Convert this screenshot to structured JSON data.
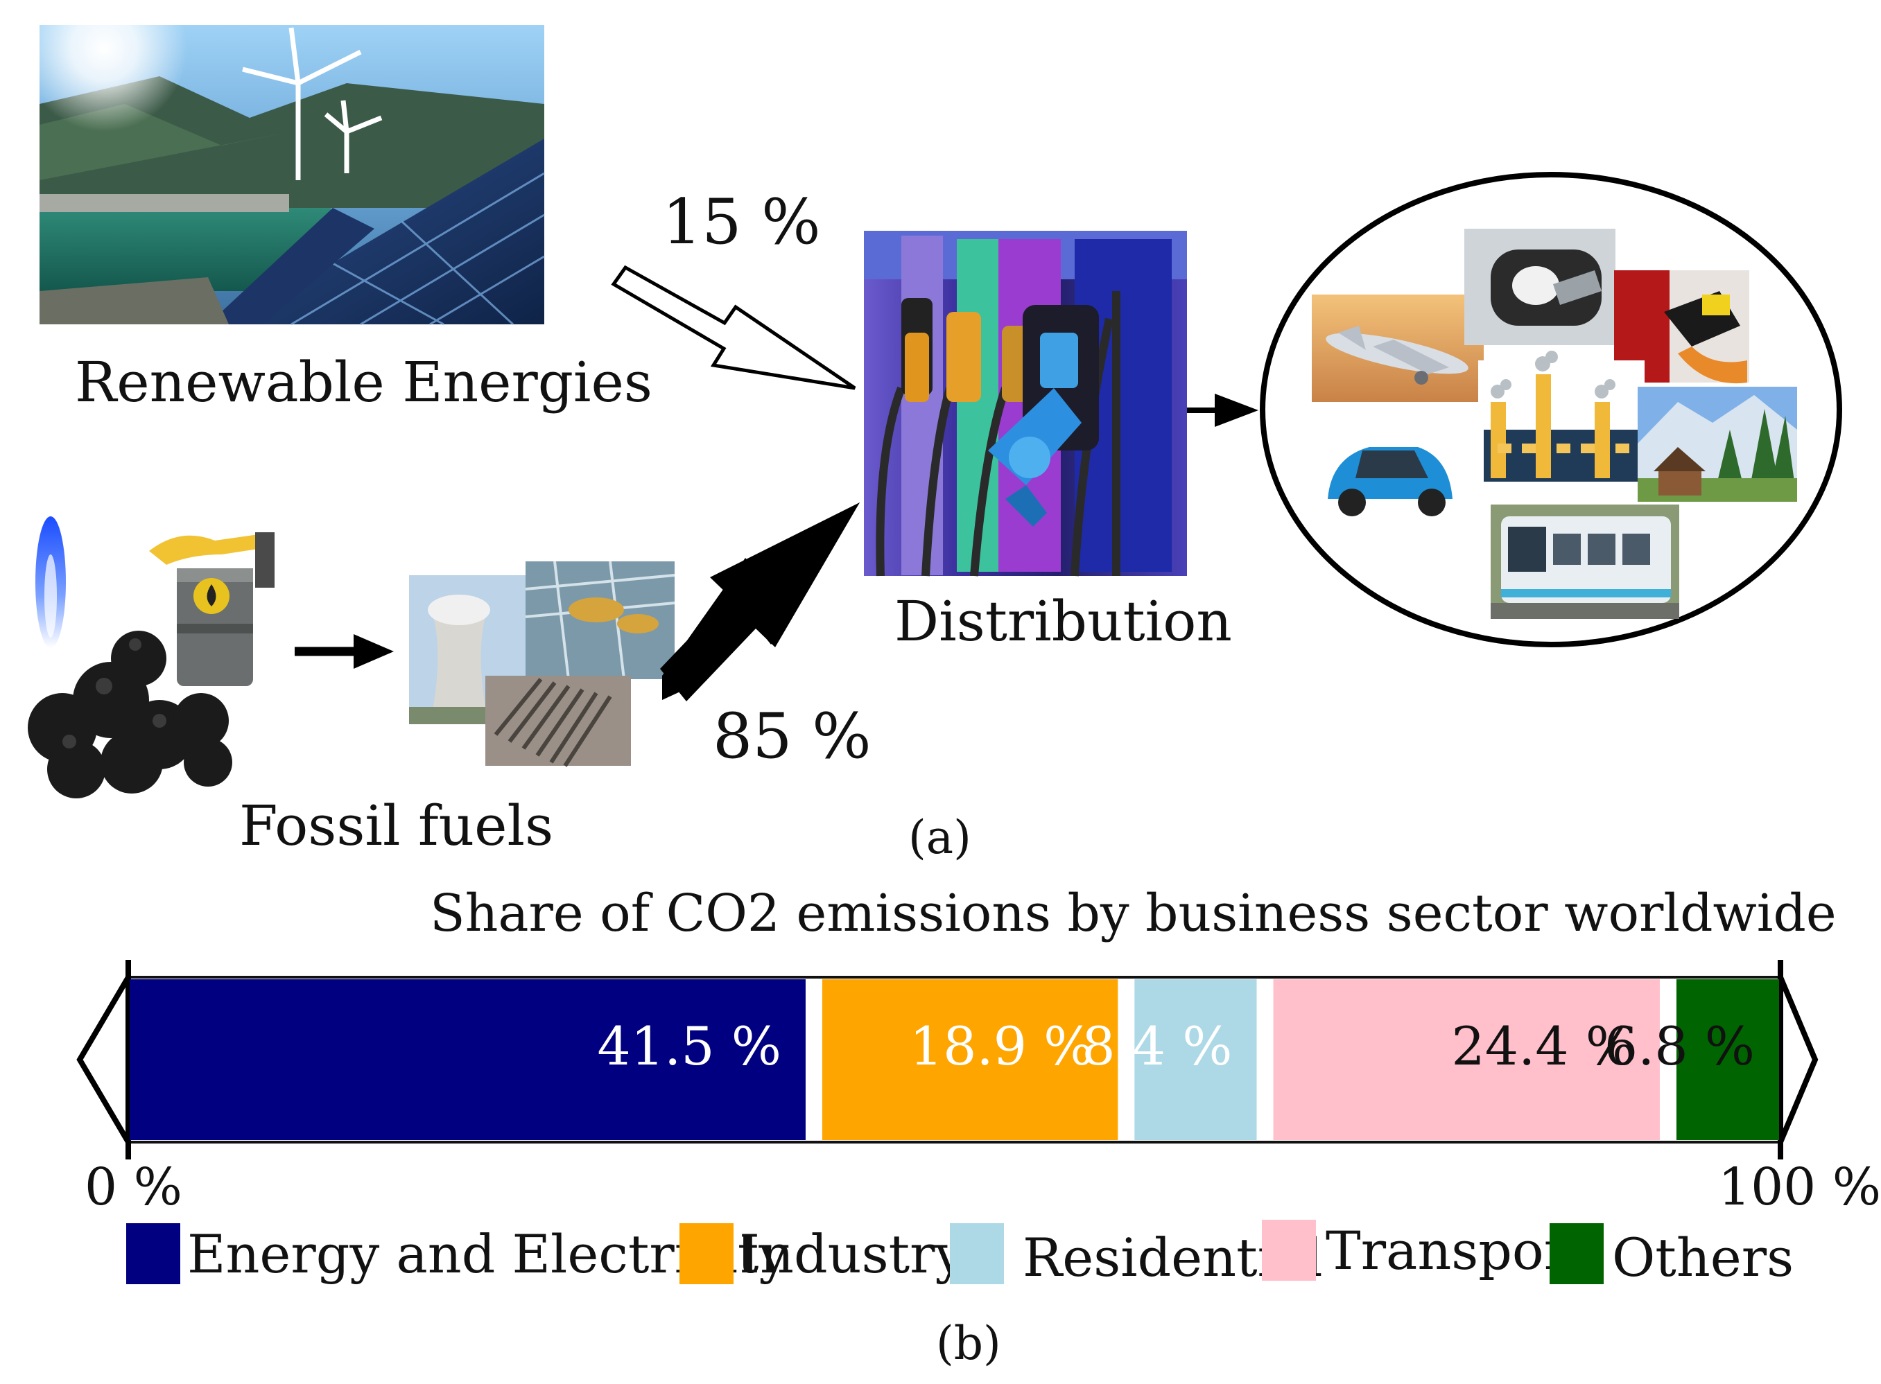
{
  "panel_a": {
    "renewable_label": "Renewable Energies",
    "fossil_label": "Fossil fuels",
    "distribution_label": "Distribution",
    "renewable_share": "15 %",
    "fossil_share": "85 %",
    "caption": "(a)"
  },
  "panel_b": {
    "caption": "(b)",
    "axis_min_label": "0 %",
    "axis_max_label": "100 %"
  },
  "colors": {
    "energy": "#000080",
    "industry": "#FFA500",
    "residential": "#ADD8E6",
    "transport": "#FFC0CB",
    "others": "#006400"
  },
  "chart_data": {
    "type": "bar",
    "orientation": "horizontal-stacked",
    "title": "Share of CO2 emissions by business sector worldwide",
    "xlim": [
      0,
      100
    ],
    "categories": [
      "Energy and Electricity",
      "Industry",
      "Residential",
      "Transport",
      "Others"
    ],
    "values": [
      41.5,
      18.9,
      8.4,
      24.4,
      6.8
    ],
    "value_labels": [
      "41.5 %",
      "18.9 %",
      "8.4 %",
      "24.4 %",
      "6.8 %"
    ],
    "series": [
      {
        "name": "Energy and Electricity",
        "value": 41.5,
        "color": "#000080",
        "label_color": "#ffffff"
      },
      {
        "name": "Industry",
        "value": 18.9,
        "color": "#FFA500",
        "label_color": "#ffffff"
      },
      {
        "name": "Residential",
        "value": 8.4,
        "color": "#ADD8E6",
        "label_color": "#ffffff"
      },
      {
        "name": "Transport",
        "value": 24.4,
        "color": "#FFC0CB",
        "label_color": "#111111"
      },
      {
        "name": "Others",
        "value": 6.8,
        "color": "#006400",
        "label_color": "#111111"
      }
    ],
    "legend": "bottom"
  }
}
